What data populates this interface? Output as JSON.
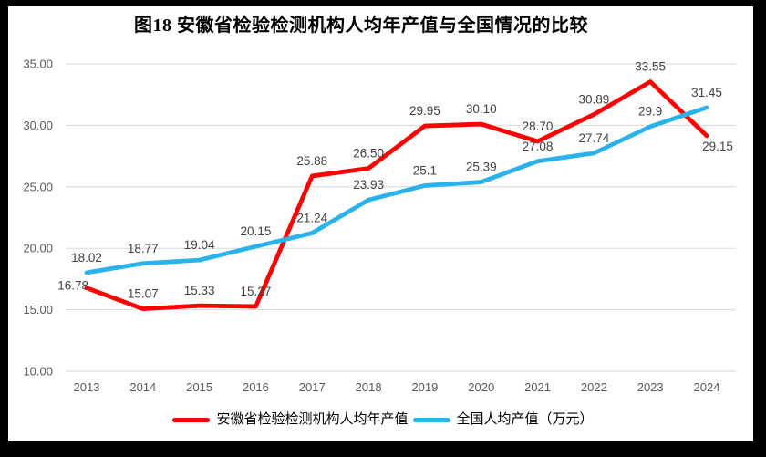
{
  "frame": {
    "background": "#000000",
    "surface": "#ffffff"
  },
  "chart_data": {
    "type": "line",
    "title": "图18 安徽省检验检测机构人均年产值与全国情况的比较",
    "categories": [
      "2013",
      "2014",
      "2015",
      "2016",
      "2017",
      "2018",
      "2019",
      "2020",
      "2021",
      "2022",
      "2023",
      "2024"
    ],
    "series": [
      {
        "name": "安徽省检验检测机构人均年产值",
        "color": "#FE0000",
        "values": [
          16.78,
          15.07,
          15.33,
          15.27,
          25.88,
          26.5,
          29.95,
          30.1,
          28.7,
          30.89,
          33.55,
          29.15
        ],
        "labels": [
          "16.78",
          "15.07",
          "15.33",
          "15.27",
          "25.88",
          "26.50",
          "29.95",
          "30.10",
          "28.70",
          "30.89",
          "33.55",
          "29.15"
        ]
      },
      {
        "name": "全国人均产值（万元）",
        "color": "#29B3EA",
        "values": [
          18.02,
          18.77,
          19.04,
          20.15,
          21.24,
          23.93,
          25.1,
          25.39,
          27.08,
          27.74,
          29.9,
          31.45
        ],
        "labels": [
          "18.02",
          "18.77",
          "19.04",
          "20.15",
          "21.24",
          "23.93",
          "25.1",
          "25.39",
          "27.08",
          "27.74",
          "29.9",
          "31.45"
        ]
      }
    ],
    "y_axis": {
      "min": 10,
      "max": 35,
      "step": 5,
      "tick_labels": [
        "10.00",
        "15.00",
        "20.00",
        "25.00",
        "30.00",
        "35.00"
      ]
    },
    "xlabel": "",
    "ylabel": "",
    "grid": true,
    "legend_position": "bottom",
    "colors": {
      "grid": "#D9D9D9",
      "axis_text": "#595959",
      "label_text": "#404040"
    }
  }
}
